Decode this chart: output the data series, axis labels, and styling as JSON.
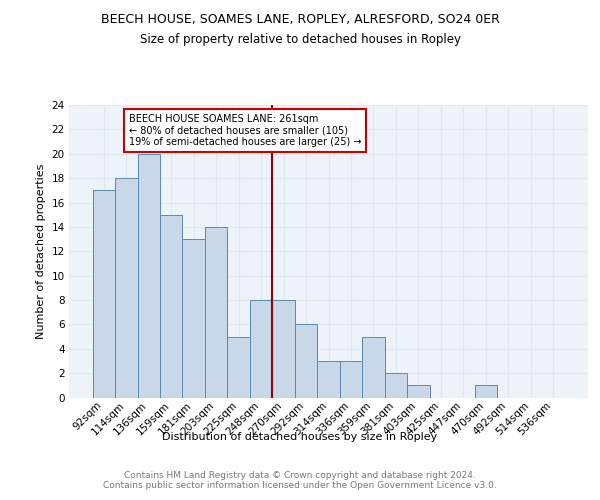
{
  "title": "BEECH HOUSE, SOAMES LANE, ROPLEY, ALRESFORD, SO24 0ER",
  "subtitle": "Size of property relative to detached houses in Ropley",
  "xlabel": "Distribution of detached houses by size in Ropley",
  "ylabel": "Number of detached properties",
  "categories": [
    "92sqm",
    "114sqm",
    "136sqm",
    "159sqm",
    "181sqm",
    "203sqm",
    "225sqm",
    "248sqm",
    "270sqm",
    "292sqm",
    "314sqm",
    "336sqm",
    "359sqm",
    "381sqm",
    "403sqm",
    "425sqm",
    "447sqm",
    "470sqm",
    "492sqm",
    "514sqm",
    "536sqm"
  ],
  "values": [
    17,
    18,
    20,
    15,
    13,
    14,
    5,
    8,
    8,
    6,
    3,
    3,
    5,
    2,
    1,
    0,
    0,
    1,
    0,
    0,
    0
  ],
  "bar_color": "#c8d8e8",
  "bar_edge_color": "#5a8ab0",
  "vline_index": 8,
  "vline_color": "#990000",
  "annotation_text": "BEECH HOUSE SOAMES LANE: 261sqm\n← 80% of detached houses are smaller (105)\n19% of semi-detached houses are larger (25) →",
  "annotation_box_color": "white",
  "annotation_box_edge_color": "#cc0000",
  "ylim": [
    0,
    24
  ],
  "yticks": [
    0,
    2,
    4,
    6,
    8,
    10,
    12,
    14,
    16,
    18,
    20,
    22,
    24
  ],
  "footer_text": "Contains HM Land Registry data © Crown copyright and database right 2024.\nContains public sector information licensed under the Open Government Licence v3.0.",
  "grid_color": "#dde8f0",
  "background_color": "#eef2f9",
  "title_fontsize": 9,
  "subtitle_fontsize": 8.5,
  "xlabel_fontsize": 8,
  "ylabel_fontsize": 8,
  "tick_fontsize": 7.5,
  "footer_fontsize": 6.5
}
